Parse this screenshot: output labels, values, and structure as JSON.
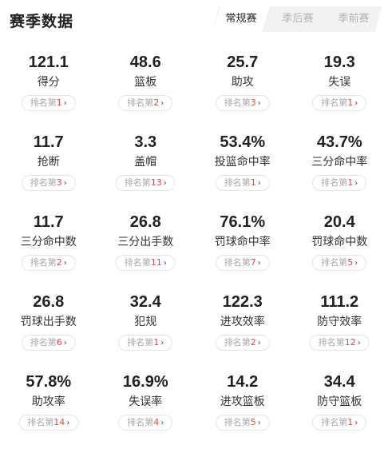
{
  "header": {
    "title": "赛季数据",
    "tabs": [
      {
        "label": "常规赛",
        "active": true
      },
      {
        "label": "季后赛",
        "active": false
      },
      {
        "label": "季前赛",
        "active": false
      }
    ]
  },
  "rank_prefix": "排名第",
  "colors": {
    "rank_number": "#d94a4a",
    "text_primary": "#222222",
    "text_muted": "#a8a8a8",
    "tab_bg": "#f2f2f2"
  },
  "stats": [
    {
      "value": "121.1",
      "label": "得分",
      "rank": "1"
    },
    {
      "value": "48.6",
      "label": "篮板",
      "rank": "2"
    },
    {
      "value": "25.7",
      "label": "助攻",
      "rank": "3"
    },
    {
      "value": "19.3",
      "label": "失误",
      "rank": "1"
    },
    {
      "value": "11.7",
      "label": "抢断",
      "rank": "3"
    },
    {
      "value": "3.3",
      "label": "盖帽",
      "rank": "13"
    },
    {
      "value": "53.4%",
      "label": "投篮命中率",
      "rank": "1"
    },
    {
      "value": "43.7%",
      "label": "三分命中率",
      "rank": "1"
    },
    {
      "value": "11.7",
      "label": "三分命中数",
      "rank": "2"
    },
    {
      "value": "26.8",
      "label": "三分出手数",
      "rank": "11"
    },
    {
      "value": "76.1%",
      "label": "罚球命中率",
      "rank": "7"
    },
    {
      "value": "20.4",
      "label": "罚球命中数",
      "rank": "5"
    },
    {
      "value": "26.8",
      "label": "罚球出手数",
      "rank": "6"
    },
    {
      "value": "32.4",
      "label": "犯规",
      "rank": "1"
    },
    {
      "value": "122.3",
      "label": "进攻效率",
      "rank": "2"
    },
    {
      "value": "111.2",
      "label": "防守效率",
      "rank": "12"
    },
    {
      "value": "57.8%",
      "label": "助攻率",
      "rank": "14"
    },
    {
      "value": "16.9%",
      "label": "失误率",
      "rank": "4"
    },
    {
      "value": "14.2",
      "label": "进攻篮板",
      "rank": "5"
    },
    {
      "value": "34.4",
      "label": "防守篮板",
      "rank": "1"
    }
  ]
}
